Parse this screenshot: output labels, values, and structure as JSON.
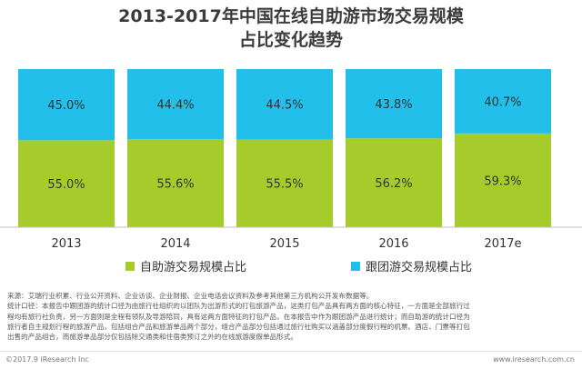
{
  "title_line1": "2013-2017年中国在线自助游市场交易规模",
  "title_line2": "占比变化趋势",
  "chart_data": {
    "type": "bar",
    "stacked": true,
    "percent": true,
    "categories": [
      "2013",
      "2014",
      "2015",
      "2016",
      "2017e"
    ],
    "series": [
      {
        "name": "自助游交易规模占比",
        "color": "#a6cc2b",
        "values": [
          55.0,
          55.6,
          55.5,
          56.2,
          59.3
        ],
        "labels": [
          "55.0%",
          "55.6%",
          "55.5%",
          "56.2%",
          "59.3%"
        ]
      },
      {
        "name": "跟团游交易规模占比",
        "color": "#21bfe9",
        "values": [
          45.0,
          44.4,
          44.5,
          43.8,
          40.7
        ],
        "labels": [
          "45.0%",
          "44.4%",
          "44.5%",
          "43.8%",
          "40.7%"
        ]
      }
    ],
    "ylim": [
      0,
      100
    ],
    "grid": false,
    "legend_position": "bottom"
  },
  "notes": {
    "line1": "来源：艾瑞行业积累、行业公开资料、企业访谈、企业财报、企业电话会议资料及参考其他第三方机构公开发布数据等。",
    "line2": "统计口径：本报告中跟团游的统计口径为由旅行社组织的以团队为出游形式的打包旅游产品，这类打包产品具有两方面的核心特征，一方面是全部旅行过",
    "line3": "程均有旅行社负责，另一方面则是全程有领队及导游陪同，具有这两方面特征的打包产品，在本报告中作为跟团游产品进行统计；而自助游的统计口径为",
    "line4": "旅行者自主规划行程的旅游产品，包括组合产品和旅游单品两个部分，组合产品部分包括通过旅行社购买以涵盖部分度假行程的机票、酒店、门票等打包",
    "line5": "出售的产品组合，而旅游单品部分仅包括除交通类和住宿类预订之外的在线旅游度假单品形式。"
  },
  "footer": {
    "left": "©2017.9 iResearch Inc",
    "right": "www.iresearch.com.cn"
  }
}
